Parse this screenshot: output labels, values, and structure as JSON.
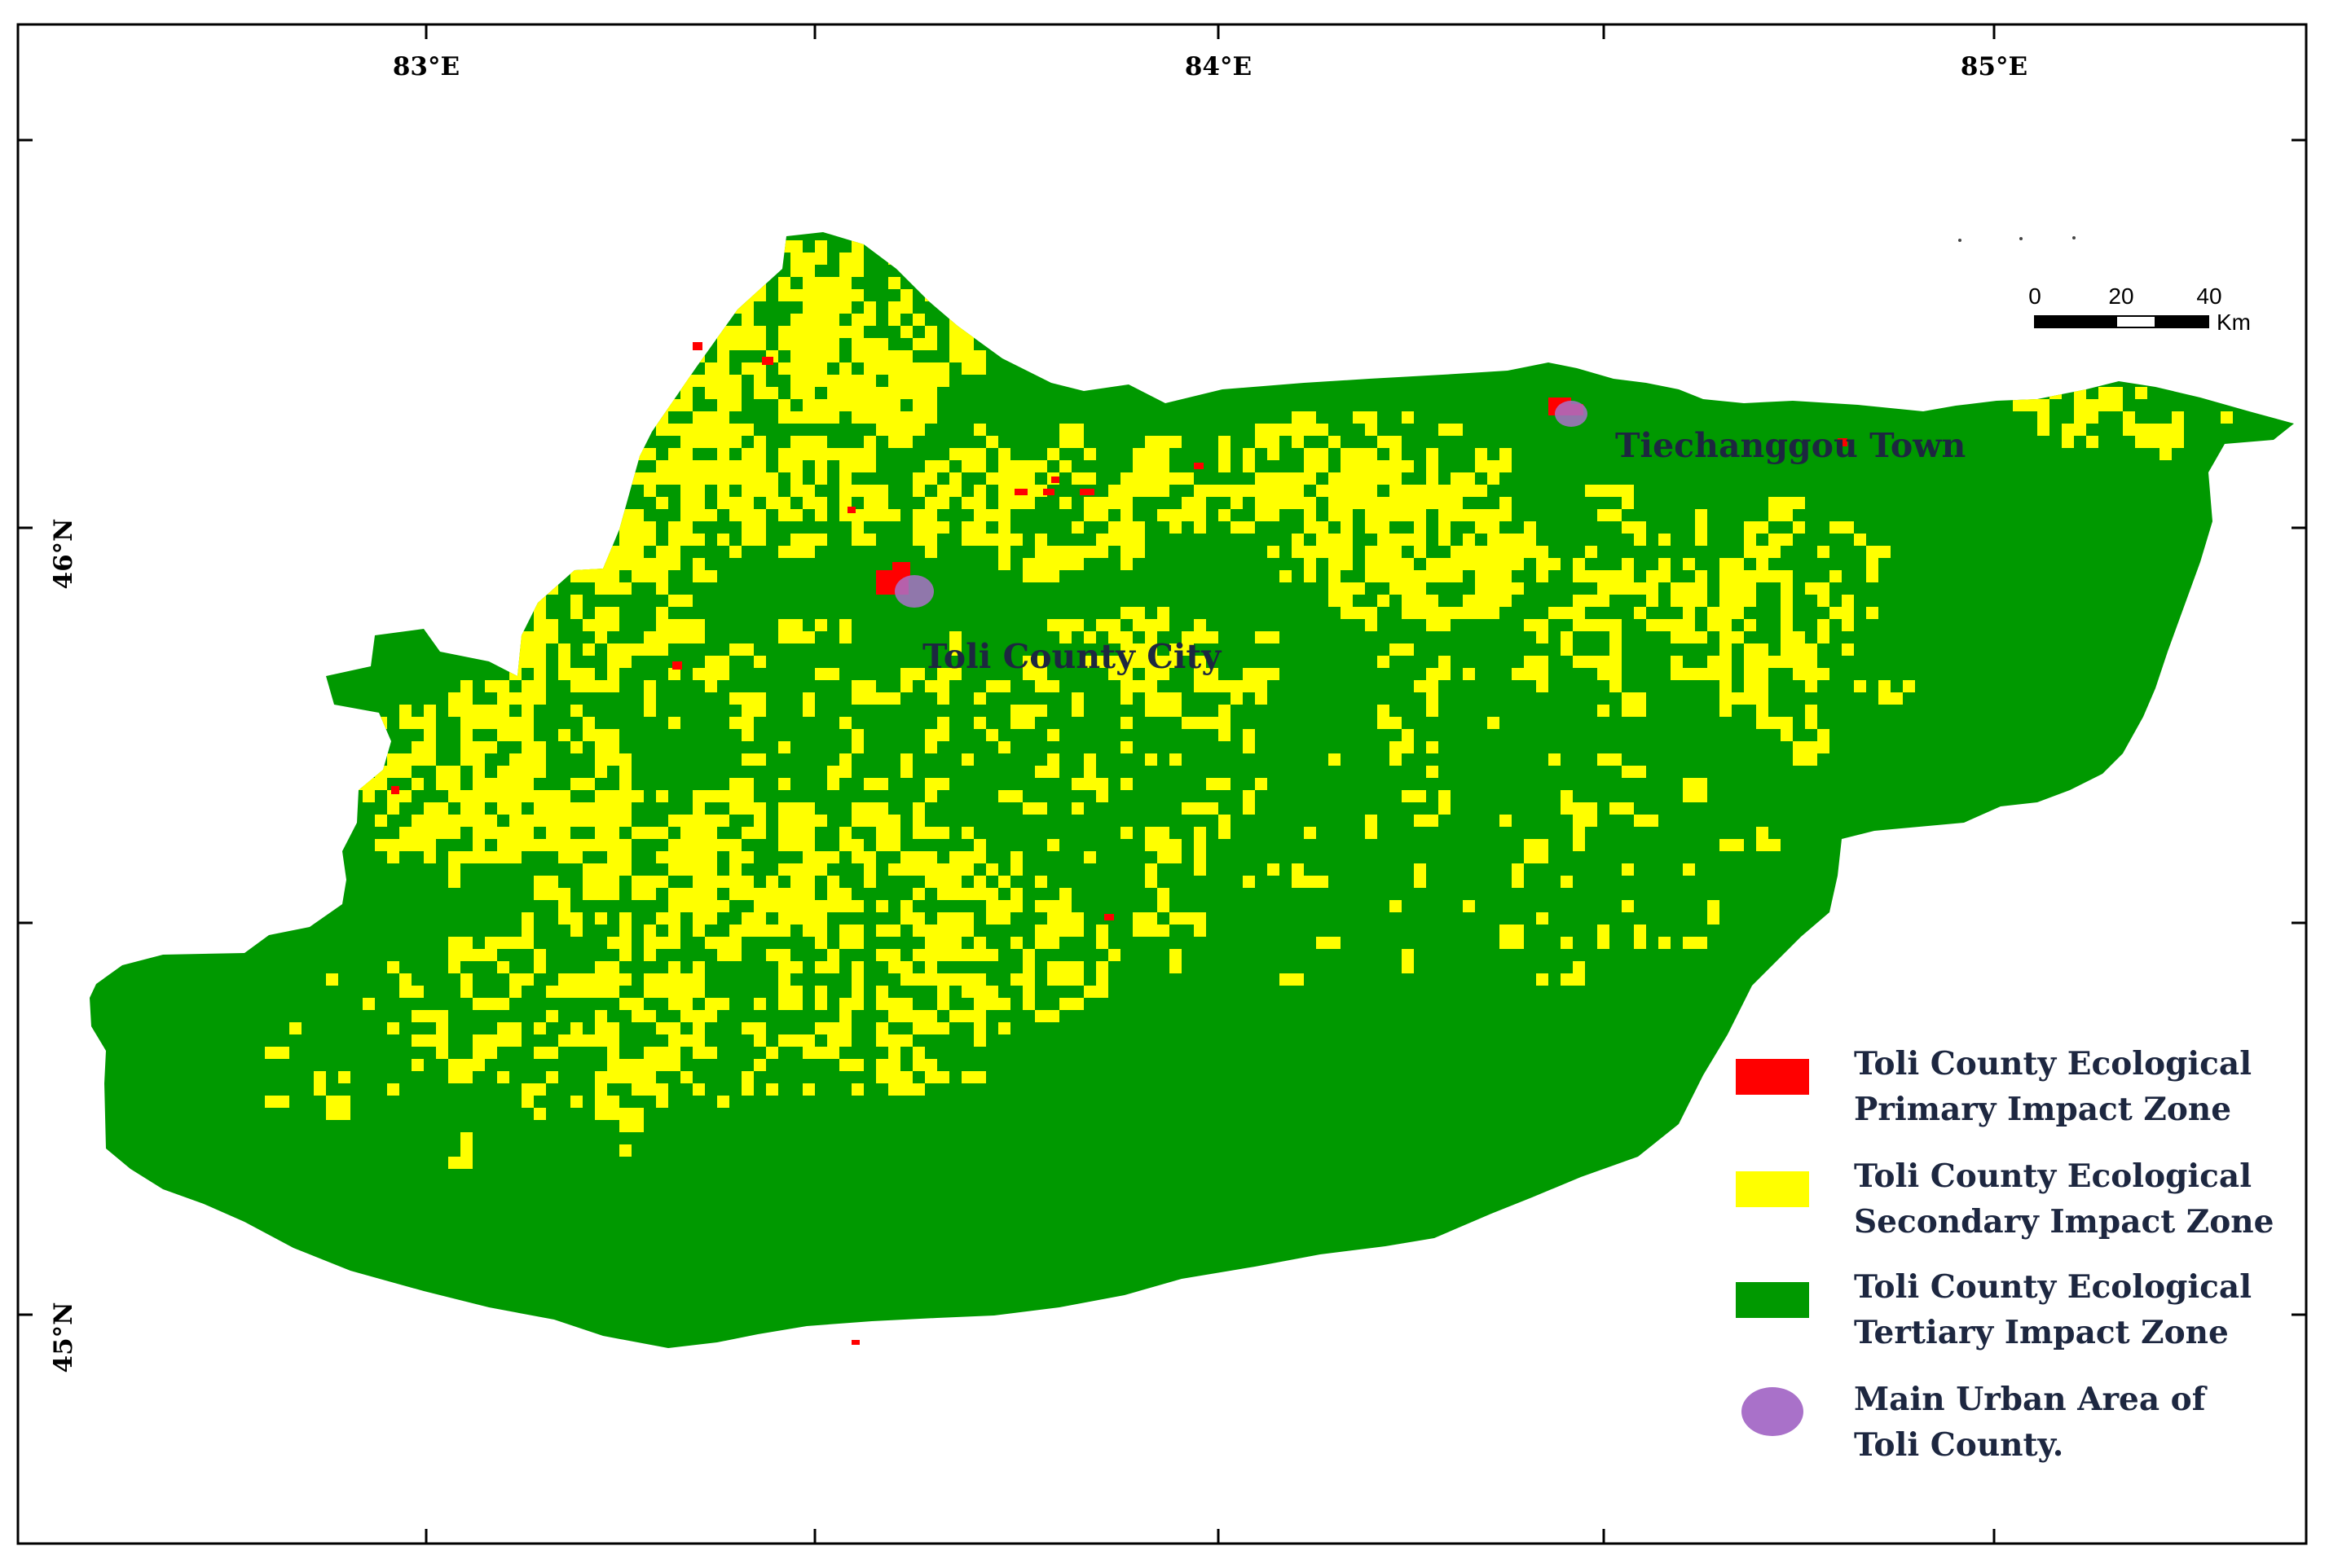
{
  "colors": {
    "primary": "#ff0000",
    "secondary": "#ffff00",
    "tertiary": "#009900",
    "urban": "#a971c9"
  },
  "axes": {
    "longitudes": [
      "83°E",
      "84°E",
      "85°E"
    ],
    "latitudes": [
      "46°N",
      "45°N"
    ]
  },
  "places": {
    "toli_city": "Toli County City",
    "tiechanggou": "Tiechanggou Town"
  },
  "scale_bar": {
    "ticks": [
      "0",
      "20",
      "40"
    ],
    "unit": "Km"
  },
  "legend": [
    {
      "label": "Toli County Ecological\nPrimary Impact Zone",
      "color": "#ff0000",
      "shape": "rectangle"
    },
    {
      "label": "Toli County Ecological\nSecondary Impact Zone",
      "color": "#ffff00",
      "shape": "rectangle"
    },
    {
      "label": "Toli County Ecological\nTertiary Impact Zone",
      "color": "#009900",
      "shape": "rectangle"
    },
    {
      "label": "Main Urban Area of\nToli County.",
      "color": "#a971c9",
      "shape": "ellipse"
    }
  ]
}
